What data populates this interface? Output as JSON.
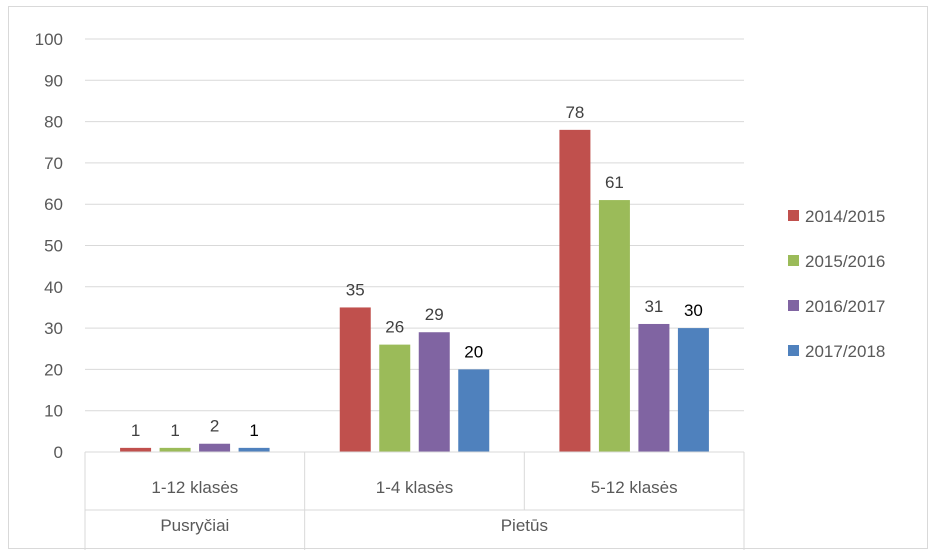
{
  "chart_data": {
    "type": "bar",
    "title": "",
    "xlabel": "",
    "ylabel": "",
    "ylim": [
      0,
      100
    ],
    "yticks": [
      0,
      10,
      20,
      30,
      40,
      50,
      60,
      70,
      80,
      90,
      100
    ],
    "grid": true,
    "legend_position": "right",
    "categories": [
      "1-12 klasės",
      "1-4 klasės",
      "5-12 klasės"
    ],
    "category_groups": [
      {
        "label": "Pusryčiai",
        "categories": [
          "1-12 klasės"
        ]
      },
      {
        "label": "Pietūs",
        "categories": [
          "1-4 klasės",
          "5-12 klasės"
        ]
      }
    ],
    "series": [
      {
        "name": "2014/2015",
        "color": "#c0504d",
        "values": [
          1,
          35,
          78
        ]
      },
      {
        "name": "2015/2016",
        "color": "#9bbb59",
        "values": [
          1,
          26,
          61
        ]
      },
      {
        "name": "2016/2017",
        "color": "#8064a2",
        "values": [
          2,
          29,
          31
        ]
      },
      {
        "name": "2017/2018",
        "color": "#4f81bd",
        "values": [
          1,
          20,
          30
        ]
      }
    ]
  }
}
